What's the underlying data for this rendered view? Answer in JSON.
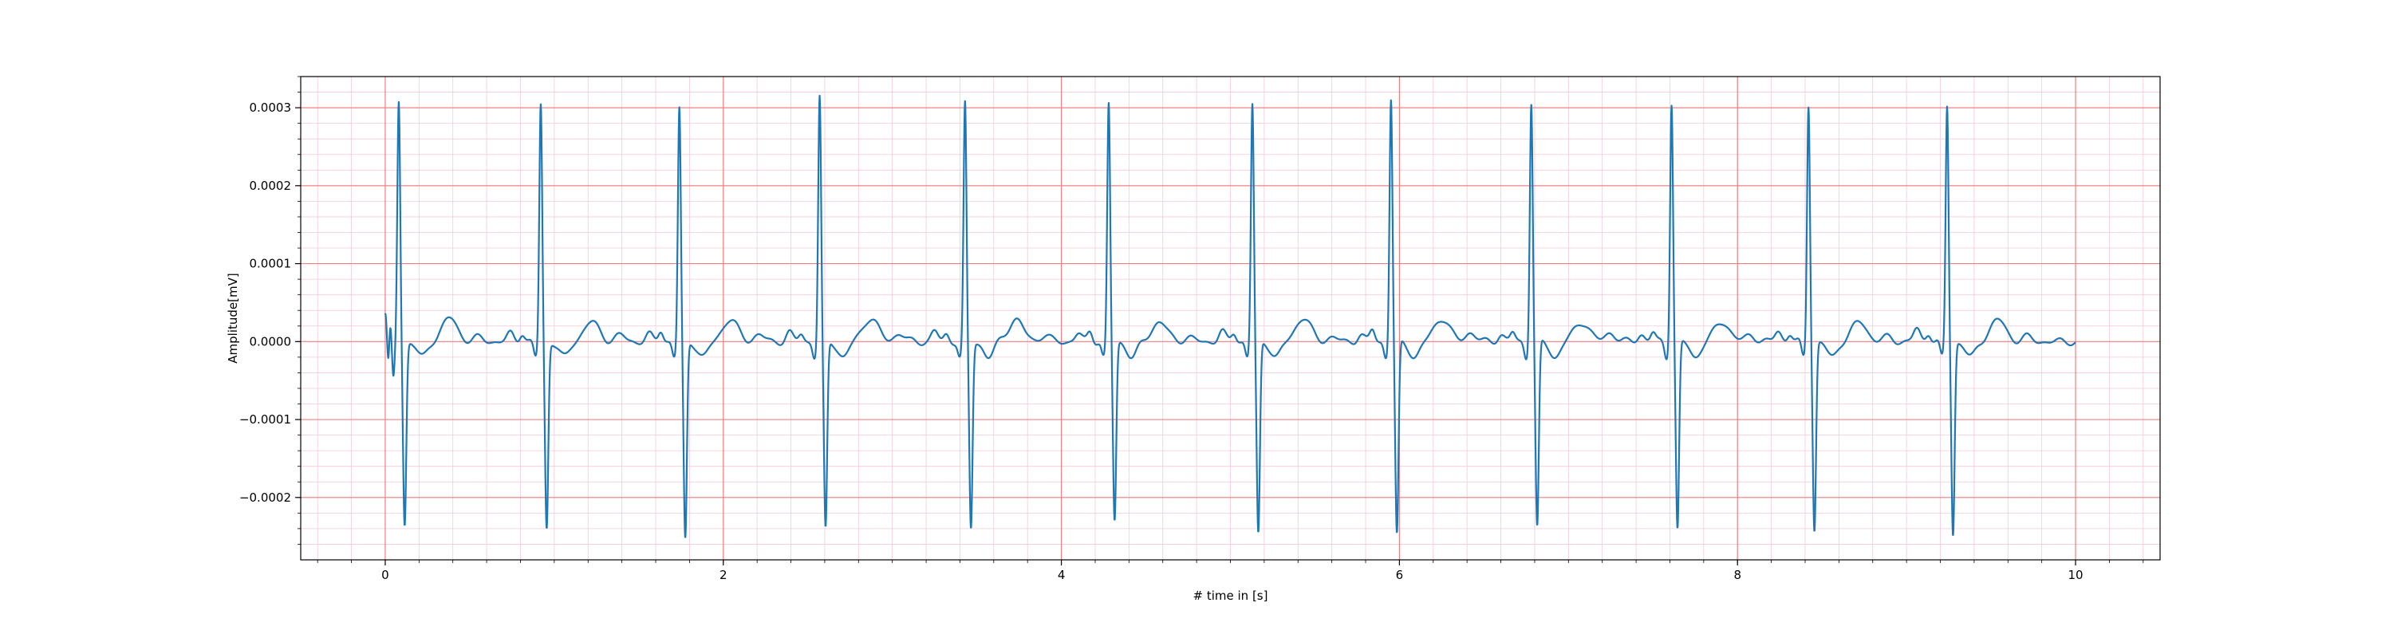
{
  "chart_data": {
    "type": "line",
    "title": "",
    "xlabel": "# time in [s]",
    "ylabel": "Amplitude[mV]",
    "xlim": [
      -0.5,
      10.5
    ],
    "ylim": [
      -0.00028,
      0.00034
    ],
    "x_ticks": [
      0,
      2,
      4,
      6,
      8,
      10
    ],
    "x_tick_labels": [
      "0",
      "2",
      "4",
      "6",
      "8",
      "10"
    ],
    "y_ticks": [
      -0.0002,
      -0.0001,
      0.0,
      0.0001,
      0.0002,
      0.0003
    ],
    "y_tick_labels": [
      "−0.0002",
      "−0.0001",
      "0.0000",
      "0.0001",
      "0.0002",
      "0.0003"
    ],
    "grid": {
      "major": true,
      "minor": true,
      "major_color": "#f08080",
      "minor_color": "#f5c8d8"
    },
    "colors": {
      "line": "#1f77b4"
    },
    "series": [
      {
        "r_peak_times": [
          0.08,
          0.92,
          1.74,
          2.57,
          3.43,
          4.28,
          5.13,
          5.95,
          6.78,
          7.61,
          8.42,
          9.24
        ],
        "r_peak_values": [
          0.00031,
          0.000305,
          0.0003,
          0.000315,
          0.000305,
          0.000305,
          0.000305,
          0.000312,
          0.000308,
          0.000308,
          0.000305,
          0.000303
        ],
        "s_trough_values": [
          -0.000235,
          -0.00024,
          -0.000255,
          -0.000242,
          -0.00024,
          -0.00023,
          -0.000248,
          -0.00025,
          -0.00024,
          -0.000242,
          -0.000242,
          -0.000248
        ],
        "t_wave_values": [
          3e-05,
          2.5e-05,
          2.8e-05,
          3e-05,
          2.8e-05,
          2.5e-05,
          3e-05,
          3e-05,
          2.5e-05,
          2.5e-05,
          2.5e-05,
          2.8e-05
        ],
        "baseline": 0.0,
        "x_end": 10.0
      }
    ]
  }
}
